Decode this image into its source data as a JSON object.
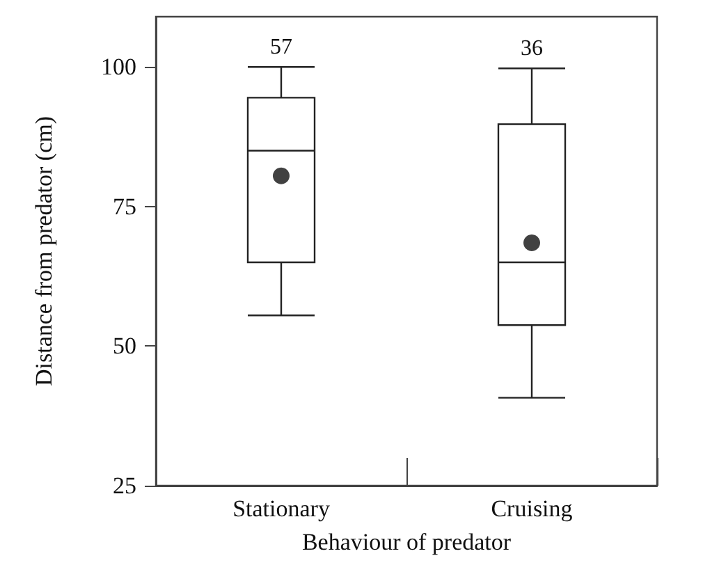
{
  "chart_data": {
    "type": "box",
    "xlabel": "Behaviour of predator",
    "ylabel": "Distance from predator (cm)",
    "categories": [
      "Stationary",
      "Cruising"
    ],
    "boxes": [
      {
        "low": 55.5,
        "q1": 65,
        "median": 85,
        "q3": 94.5,
        "high": 100
      },
      {
        "low": 40.75,
        "q1": 53.75,
        "median": 65,
        "q3": 89.75,
        "high": 99.75
      }
    ],
    "series": [
      {
        "type": "scatter",
        "x": [
          "Stationary",
          "Cruising"
        ],
        "values": [
          80.5,
          68.5
        ],
        "color": "#111111",
        "marker": "circle"
      }
    ],
    "ylim": [
      25,
      109
    ],
    "yticks": [
      25,
      50,
      75,
      100
    ],
    "grid": false,
    "annotations": [
      "57",
      "36"
    ]
  }
}
